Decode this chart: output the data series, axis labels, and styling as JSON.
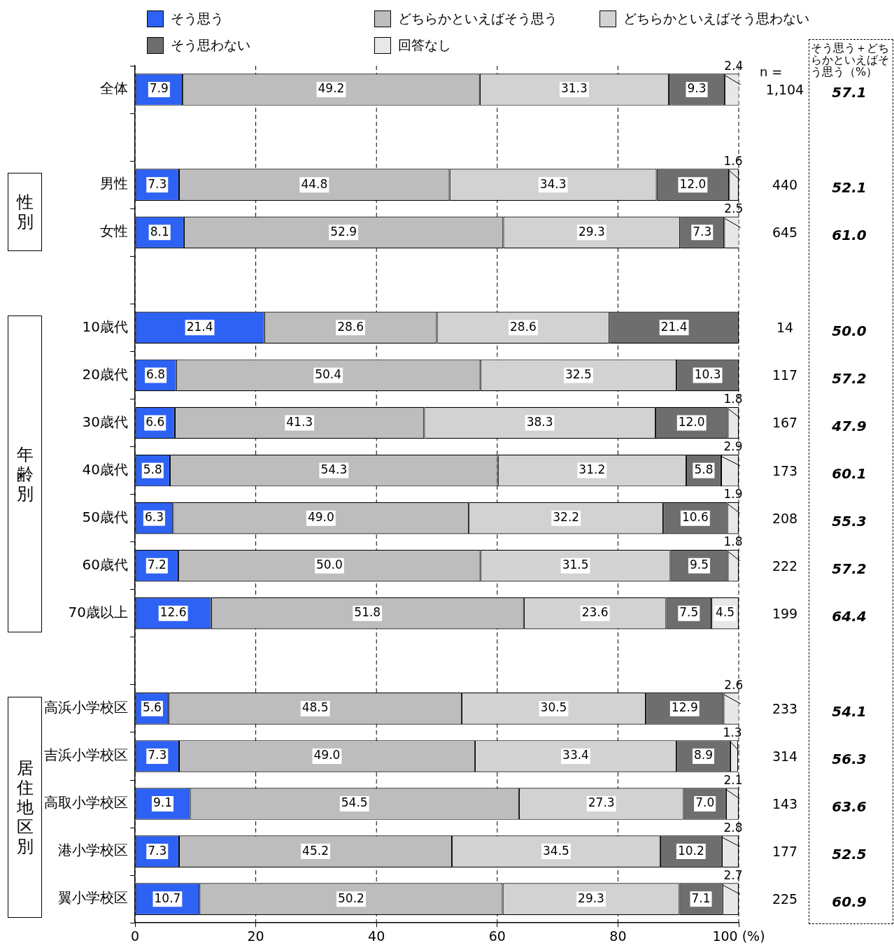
{
  "chart_data": {
    "type": "bar",
    "orientation": "horizontal",
    "stacked": true,
    "legend": "top",
    "grid": "x",
    "categories": [
      "全体",
      null,
      "男性",
      "女性",
      null,
      "10歳代",
      "20歳代",
      "30歳代",
      "40歳代",
      "50歳代",
      "60歳代",
      "70歳以上",
      null,
      "高浜小学校区",
      "吉浜小学校区",
      "高取小学校区",
      "港小学校区",
      "翼小学校区"
    ],
    "xlim": [
      0,
      100
    ],
    "xticks": [
      0,
      20,
      40,
      60,
      80,
      {
        "value": 100,
        "label": "100 (%)"
      }
    ],
    "series": [
      {
        "name": "そう思う",
        "color": "#2e62f5",
        "values": [
          7.9,
          null,
          7.3,
          8.1,
          null,
          21.4,
          6.8,
          6.6,
          5.8,
          6.3,
          7.2,
          12.6,
          null,
          5.6,
          7.3,
          9.1,
          7.3,
          10.7
        ],
        "value_labels": [
          "7.9",
          null,
          "7.3",
          "8.1",
          null,
          "21.4",
          "6.8",
          "6.6",
          "5.8",
          "6.3",
          "7.2",
          "12.6",
          null,
          "5.6",
          "7.3",
          "9.1",
          "7.3",
          "10.7"
        ]
      },
      {
        "name": "どちらかといえばそう思う",
        "color": "#bdbdbd",
        "values": [
          49.2,
          null,
          44.8,
          52.9,
          null,
          28.6,
          50.4,
          41.3,
          54.3,
          49.0,
          50.0,
          51.8,
          null,
          48.5,
          49.0,
          54.5,
          45.2,
          50.2
        ],
        "value_labels": [
          "49.2",
          null,
          "44.8",
          "52.9",
          null,
          "28.6",
          "50.4",
          "41.3",
          "54.3",
          "49.0",
          "50.0",
          "51.8",
          null,
          "48.5",
          "49.0",
          "54.5",
          "45.2",
          "50.2"
        ]
      },
      {
        "name": "どちらかといえばそう思わない",
        "color": "#d2d2d2",
        "values": [
          31.3,
          null,
          34.3,
          29.3,
          null,
          28.6,
          32.5,
          38.3,
          31.2,
          32.2,
          31.5,
          23.6,
          null,
          30.5,
          33.4,
          27.3,
          34.5,
          29.3
        ],
        "value_labels": [
          "31.3",
          null,
          "34.3",
          "29.3",
          null,
          "28.6",
          "32.5",
          "38.3",
          "31.2",
          "32.2",
          "31.5",
          "23.6",
          null,
          "30.5",
          "33.4",
          "27.3",
          "34.5",
          "29.3"
        ]
      },
      {
        "name": "そう思わない",
        "color": "#6e6e6e",
        "values": [
          9.3,
          null,
          12.0,
          7.3,
          null,
          21.4,
          10.3,
          12.0,
          5.8,
          10.6,
          9.5,
          7.5,
          null,
          12.9,
          8.9,
          7.0,
          10.2,
          7.1
        ],
        "value_labels": [
          "9.3",
          null,
          "12.0",
          "7.3",
          null,
          "21.4",
          "10.3",
          "12.0",
          "5.8",
          "10.6",
          "9.5",
          "7.5",
          null,
          "12.9",
          "8.9",
          "7.0",
          "10.2",
          "7.1"
        ]
      },
      {
        "name": "回答なし",
        "color": "#e8e8e8",
        "values": [
          2.4,
          null,
          1.6,
          2.5,
          null,
          null,
          null,
          1.8,
          2.9,
          1.9,
          1.8,
          4.5,
          null,
          2.6,
          1.3,
          2.1,
          2.8,
          2.7
        ],
        "value_labels": [
          "2.4",
          null,
          "1.6",
          "2.5",
          null,
          null,
          null,
          "1.8",
          "2.9",
          "1.9",
          "1.8",
          "4.5",
          null,
          "2.6",
          "1.3",
          "2.1",
          "2.8",
          "2.7"
        ]
      }
    ],
    "annotations": [
      "n =",
      "そう思う＋どちらかといえばそう思う（%）",
      "性別",
      "年齢別",
      "居住地区別",
      "1,104",
      "57.1",
      "440",
      "52.1",
      "645",
      "61.0",
      "14",
      "50.0",
      "117",
      "57.2",
      "167",
      "47.9",
      "173",
      "60.1",
      "208",
      "55.3",
      "222",
      "57.2",
      "199",
      "64.4",
      "233",
      "54.1",
      "314",
      "56.3",
      "143",
      "63.6",
      "177",
      "52.5",
      "225",
      "60.9"
    ]
  }
}
